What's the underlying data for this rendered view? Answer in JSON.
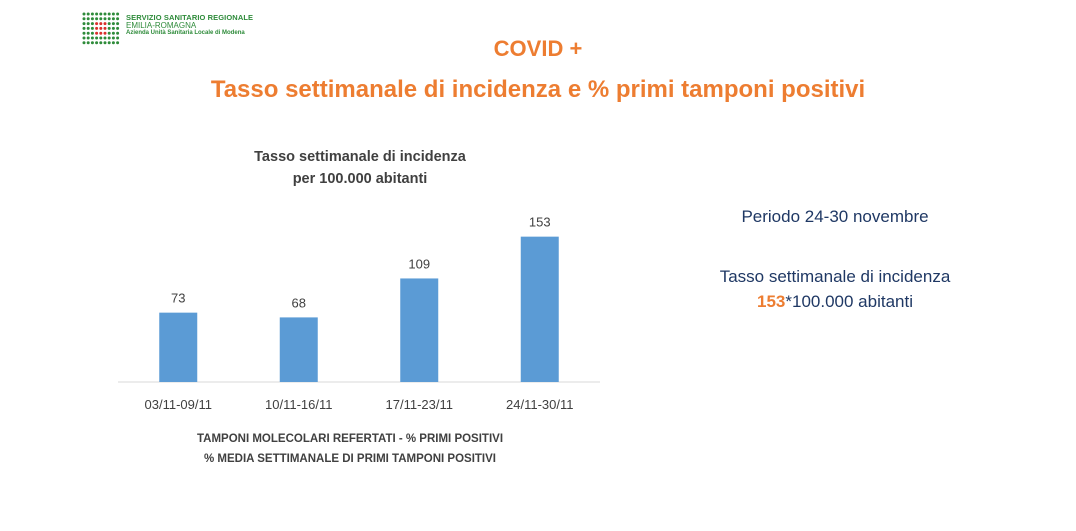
{
  "logo": {
    "line1": "SERVIZIO SANITARIO REGIONALE",
    "line2": "EMILIA-ROMAGNA",
    "line3": "Azienda Unità Sanitaria Locale di Modena"
  },
  "header": {
    "title": "COVID +",
    "subtitle": "Tasso settimanale di incidenza e % primi tamponi positivi"
  },
  "chart_data": {
    "type": "bar",
    "title_line1": "Tasso settimanale di incidenza",
    "title_line2": "per 100.000 abitanti",
    "categories": [
      "03/11-09/11",
      "10/11-16/11",
      "17/11-23/11",
      "24/11-30/11"
    ],
    "values": [
      73,
      68,
      109,
      153
    ],
    "data_labels": [
      "73",
      "68",
      "109",
      "153"
    ],
    "ylim": [
      0,
      160
    ],
    "grid": false,
    "bar_color": "#5b9bd5"
  },
  "footer": {
    "line1": "TAMPONI MOLECOLARI REFERTATI - % PRIMI POSITIVI",
    "line2": "% MEDIA SETTIMANALE DI PRIMI TAMPONI POSITIVI"
  },
  "side_panel": {
    "period": "Periodo 24-30 novembre",
    "rate_label": "Tasso settimanale di incidenza",
    "rate_value": "153",
    "rate_suffix": "*100.000 abitanti"
  },
  "colors": {
    "accent": "#ed7d31",
    "navy": "#1f3864",
    "logo_green": "#2e8b3a",
    "logo_red": "#d9302c"
  }
}
